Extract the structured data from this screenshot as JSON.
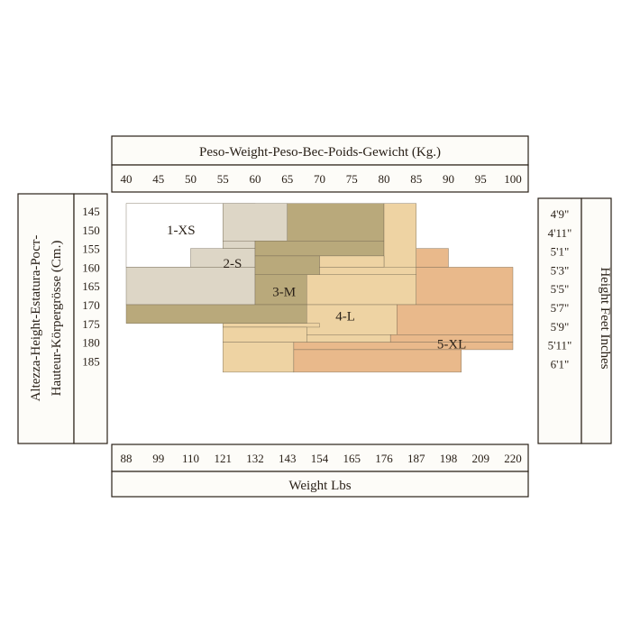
{
  "chart_data": {
    "type": "heatmap",
    "top_axis": {
      "title": "Peso-Weight-Peso-Bec-Poids-Gewicht (Kg.)",
      "ticks": [
        "40",
        "45",
        "50",
        "55",
        "60",
        "65",
        "70",
        "75",
        "80",
        "85",
        "90",
        "95",
        "100"
      ]
    },
    "bottom_axis": {
      "title": "Weight Lbs",
      "ticks": [
        "88",
        "99",
        "110",
        "121",
        "132",
        "143",
        "154",
        "165",
        "176",
        "187",
        "198",
        "209",
        "220"
      ]
    },
    "left_axis": {
      "title_line1": "Altezza-Height-Estatura-Рост-",
      "title_line2": "Hauteur-Körpergrösse (Cm.)",
      "ticks": [
        "145",
        "150",
        "155",
        "160",
        "165",
        "170",
        "175",
        "180",
        "185"
      ]
    },
    "right_axis": {
      "title": "Height Feet Inches",
      "ticks": [
        "4'9\"",
        "4'11\"",
        "5'1\"",
        "5'3\"",
        "5'5\"",
        "5'7\"",
        "5'9\"",
        "5'11\"",
        "6'1\""
      ]
    },
    "zones": [
      {
        "label": "1-XS",
        "color": "#ffffff",
        "cells": [
          {
            "kg": [
              40,
              55
            ],
            "cm": [
              143,
              160
            ]
          },
          {
            "kg": [
              55,
              60
            ],
            "cm": [
              143,
              153
            ]
          }
        ]
      },
      {
        "label": "2-S",
        "color": "#ddd6c6",
        "cells": [
          {
            "kg": [
              55,
              65
            ],
            "cm": [
              143,
              153
            ]
          },
          {
            "kg": [
              55,
              60
            ],
            "cm": [
              153,
              155
            ]
          },
          {
            "kg": [
              50,
              60
            ],
            "cm": [
              155,
              160
            ]
          },
          {
            "kg": [
              40,
              60
            ],
            "cm": [
              160,
              170
            ]
          }
        ]
      },
      {
        "label": "3-M",
        "color": "#b9a97b",
        "cells": [
          {
            "kg": [
              65,
              80
            ],
            "cm": [
              143,
              153
            ]
          },
          {
            "kg": [
              60,
              80
            ],
            "cm": [
              153,
              157
            ]
          },
          {
            "kg": [
              60,
              70
            ],
            "cm": [
              157,
              162
            ]
          },
          {
            "kg": [
              60,
              68
            ],
            "cm": [
              162,
              170
            ]
          },
          {
            "kg": [
              40,
              68
            ],
            "cm": [
              170,
              175
            ]
          },
          {
            "kg": [
              55,
              65
            ],
            "cm": [
              175,
              176
            ]
          }
        ]
      },
      {
        "label": "4-L",
        "color": "#eed3a3",
        "cells": [
          {
            "kg": [
              80,
              85
            ],
            "cm": [
              143,
              170
            ]
          },
          {
            "kg": [
              70,
              80
            ],
            "cm": [
              157,
              160
            ]
          },
          {
            "kg": [
              70,
              85
            ],
            "cm": [
              160,
              162
            ]
          },
          {
            "kg": [
              68,
              85
            ],
            "cm": [
              162,
              170
            ]
          },
          {
            "kg": [
              68,
              82
            ],
            "cm": [
              170,
              178
            ]
          },
          {
            "kg": [
              68,
              81
            ],
            "cm": [
              178,
              180
            ]
          },
          {
            "kg": [
              55,
              70
            ],
            "cm": [
              175,
              176
            ]
          },
          {
            "kg": [
              55,
              68
            ],
            "cm": [
              176,
              180
            ]
          },
          {
            "kg": [
              55,
              66
            ],
            "cm": [
              180,
              188
            ]
          }
        ]
      },
      {
        "label": "5-XL",
        "color": "#e9b98b",
        "cells": [
          {
            "kg": [
              85,
              90
            ],
            "cm": [
              155,
              160
            ]
          },
          {
            "kg": [
              85,
              100
            ],
            "cm": [
              160,
              170
            ]
          },
          {
            "kg": [
              82,
              100
            ],
            "cm": [
              170,
              178
            ]
          },
          {
            "kg": [
              81,
              100
            ],
            "cm": [
              178,
              180
            ]
          },
          {
            "kg": [
              66,
              100
            ],
            "cm": [
              180,
              182
            ]
          },
          {
            "kg": [
              66,
              92
            ],
            "cm": [
              182,
              188
            ]
          }
        ]
      }
    ],
    "grid": false,
    "legend": "none"
  }
}
